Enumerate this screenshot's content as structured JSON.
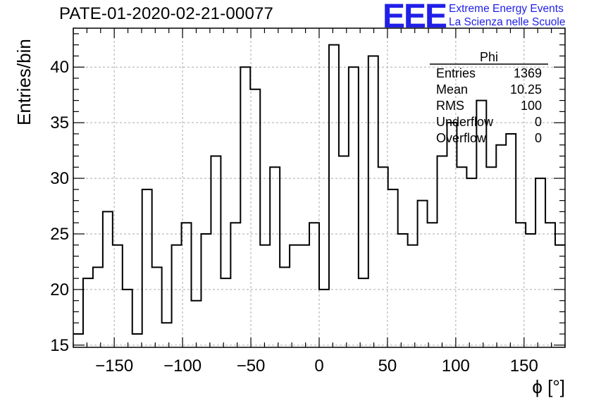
{
  "title": "PATE-01-2020-02-21-00077",
  "logo": {
    "mark": "EEE",
    "line1": "Extreme Energy Events",
    "line2": "La Scienza nelle Scuole",
    "color": "#2020e8"
  },
  "stats": {
    "name": "Phi",
    "rows": [
      {
        "label": "Entries",
        "value": "1369"
      },
      {
        "label": "Mean",
        "value": "10.25"
      },
      {
        "label": "RMS",
        "value": "100"
      },
      {
        "label": "Underflow",
        "value": "0"
      },
      {
        "label": "Overflow",
        "value": "0"
      }
    ]
  },
  "chart_data": {
    "type": "bar",
    "style": "step-histogram",
    "xlabel": "ϕ [°]",
    "ylabel": "Entries/bin",
    "xlim": [
      -180,
      180
    ],
    "ylim": [
      14.8,
      43.5
    ],
    "bin_width": 7.2,
    "bin_start": -180,
    "xticks": [
      -150,
      -100,
      -50,
      0,
      50,
      100,
      150
    ],
    "yticks": [
      15,
      20,
      25,
      30,
      35,
      40
    ],
    "grid": true,
    "values": [
      16,
      21,
      22,
      27,
      24,
      20,
      16,
      29,
      22,
      17,
      24,
      26,
      19,
      25,
      32,
      21,
      26,
      40,
      38,
      24,
      31,
      22,
      24,
      24,
      26,
      20,
      42,
      32,
      40,
      21,
      41,
      31,
      29,
      25,
      24,
      28,
      26,
      32,
      35,
      31,
      30,
      37,
      31,
      33,
      34,
      26,
      25,
      30,
      26,
      24
    ]
  }
}
